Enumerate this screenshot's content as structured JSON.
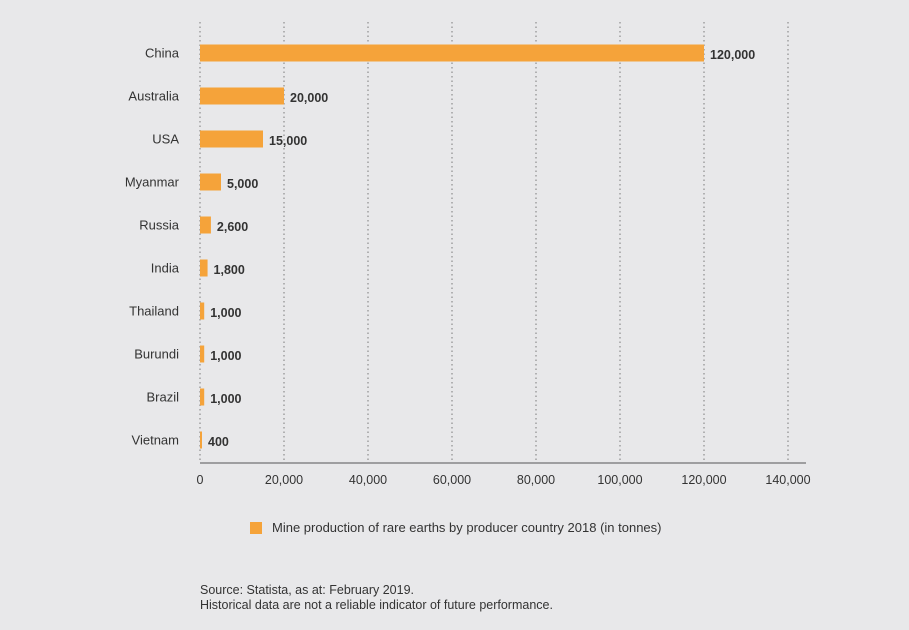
{
  "chart_data": {
    "type": "bar",
    "orientation": "horizontal",
    "categories": [
      "China",
      "Australia",
      "USA",
      "Myanmar",
      "Russia",
      "India",
      "Thailand",
      "Burundi",
      "Brazil",
      "Vietnam"
    ],
    "values": [
      120000,
      20000,
      15000,
      5000,
      2600,
      1800,
      1000,
      1000,
      1000,
      400
    ],
    "value_labels": [
      "120,000",
      "20,000",
      "15,000",
      "5,000",
      "2,600",
      "1,800",
      "1,000",
      "1,000",
      "1,000",
      "400"
    ],
    "series": [
      {
        "name": "Mine production of rare earths by producer country 2018 (in tonnes)",
        "values": [
          120000,
          20000,
          15000,
          5000,
          2600,
          1800,
          1000,
          1000,
          1000,
          400
        ]
      }
    ],
    "xlim": [
      0,
      140000
    ],
    "xticks": [
      0,
      20000,
      40000,
      60000,
      80000,
      100000,
      120000,
      140000
    ],
    "xtick_labels": [
      "0",
      "20,000",
      "40,000",
      "60,000",
      "80,000",
      "100,000",
      "120,000",
      "140,000"
    ],
    "grid": "vertical dotted",
    "legend_position": "bottom",
    "bar_color": "#f5a33a"
  },
  "legend": {
    "label": "Mine production of rare earths by producer country 2018 (in tonnes)"
  },
  "footer": {
    "source": "Source: Statista, as at: February 2019.",
    "disclaimer": "Historical data are not a reliable indicator of future performance."
  }
}
